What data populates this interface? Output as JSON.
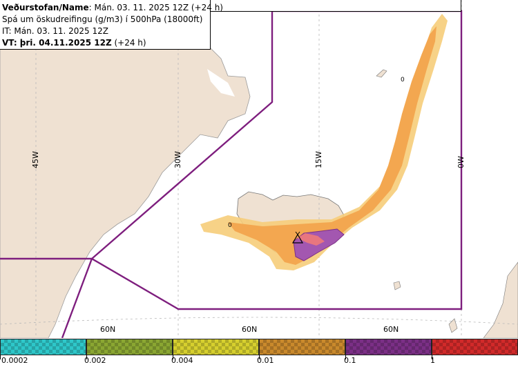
{
  "header": {
    "agency": "Veðurstofan/Name",
    "run": ": Mán. 03. 11. 2025 12Z (+24 h)",
    "product": "Spá um öskudreifingu (g/m3) í 500hPa (18000ft)",
    "issue_time": "IT: Mán. 03. 11. 2025 12Z",
    "valid_prefix": "VT: þri. 04.11.2025 12Z",
    "valid_suffix": " (+24 h)"
  },
  "map_labels": {
    "lon_45w": "45W",
    "lon_30w": "30W",
    "lon_15w": "15W",
    "lon_0w": "0W",
    "lat_60n_a": "60N",
    "lat_60n_b": "60N",
    "lat_60n_c": "60N",
    "contour_zero_west": "0",
    "contour_zero_north": "0"
  },
  "legend": {
    "labels": [
      "0.0002",
      "0.002",
      "0.004",
      "0.01",
      "0.1",
      "1"
    ],
    "colors": [
      "#2ec7c9",
      "#8aa632",
      "#d6cf2e",
      "#c9892c",
      "#7b2f86",
      "#d12a2a"
    ]
  },
  "colors": {
    "land": "#efe1d2",
    "sea": "#ffffff",
    "fir_boundary": "#7e1e7e",
    "ash_low": "#f6cd7a",
    "ash_mid": "#f3a750",
    "ash_high": "#a357b0",
    "ash_max": "#f07a7a"
  }
}
